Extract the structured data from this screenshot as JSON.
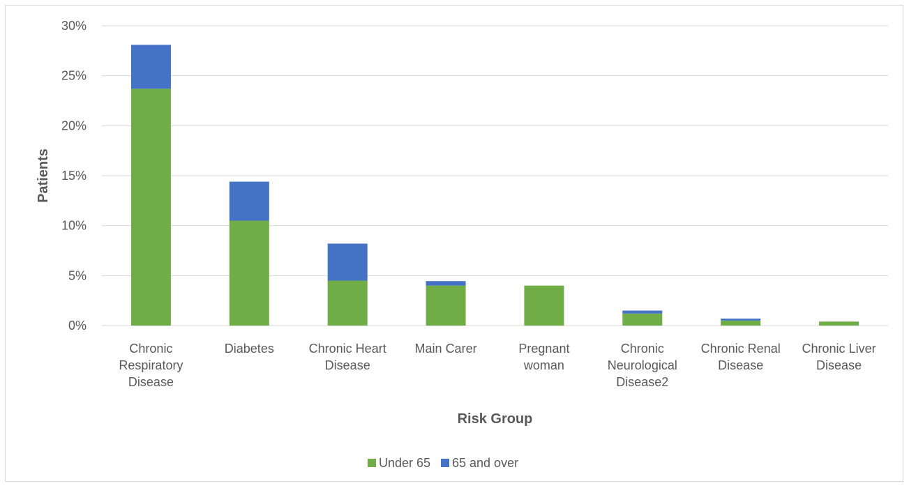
{
  "chart_data": {
    "type": "bar",
    "stacked": true,
    "categories": [
      [
        "Chronic",
        "Respiratory",
        "Disease"
      ],
      [
        "Diabetes"
      ],
      [
        "Chronic Heart",
        "Disease"
      ],
      [
        "Main Carer"
      ],
      [
        "Pregnant",
        "woman"
      ],
      [
        "Chronic",
        "Neurological",
        "Disease2"
      ],
      [
        "Chronic Renal",
        "Disease"
      ],
      [
        "Chronic Liver",
        "Disease"
      ]
    ],
    "series": [
      {
        "name": "Under 65",
        "color": "#70ad47",
        "values": [
          23.7,
          10.5,
          4.5,
          4.0,
          4.0,
          1.2,
          0.5,
          0.4
        ]
      },
      {
        "name": "65 and over",
        "color": "#4472c4",
        "values": [
          4.4,
          3.9,
          3.7,
          0.45,
          0.0,
          0.3,
          0.2,
          0.0
        ]
      }
    ],
    "xlabel": "Risk Group",
    "ylabel": "Patients",
    "ylim": [
      0,
      30
    ],
    "yticks": [
      "0%",
      "5%",
      "10%",
      "15%",
      "20%",
      "25%",
      "30%"
    ],
    "ytick_values": [
      0,
      5,
      10,
      15,
      20,
      25,
      30
    ],
    "grid": true,
    "legend_position": "bottom"
  }
}
